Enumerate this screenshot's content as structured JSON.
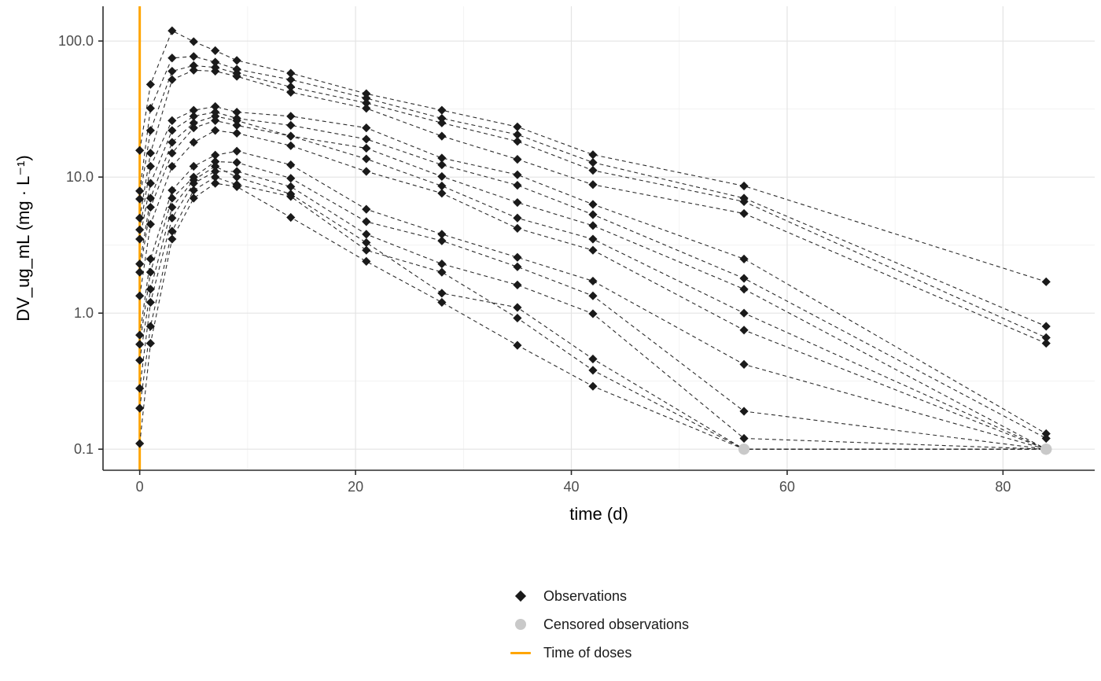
{
  "figure": {
    "background": "#FFFFFF",
    "axis_line_color": "#2B2B2B",
    "grid_major_color": "#E4E4E4",
    "grid_minor_color": "#F0F0F0",
    "tick_label_color": "#4D4D4D",
    "observation_color": "#1A1A1A",
    "censored_color": "#C9C9C9",
    "dose_line_color": "#FFA500"
  },
  "chart_data": {
    "type": "scatter",
    "subtype": "spaghetti-pk-log",
    "title": "",
    "xlabel": "time (d)",
    "ylabel": "DV_ug_mL (mg · L⁻¹)",
    "y_scale": "log10",
    "x_ticks": [
      0,
      20,
      40,
      60,
      80
    ],
    "x_minor_ticks": [
      10,
      30,
      50,
      70
    ],
    "y_ticks": [
      0.1,
      1.0,
      10.0,
      100.0
    ],
    "y_tick_labels": [
      "0.1",
      "1.0",
      "10.0",
      "100.0"
    ],
    "y_minor_ticks": [
      0.3162,
      3.1623,
      31.6228
    ],
    "x_range": [
      -3.4,
      88.5
    ],
    "y_range": [
      0.07,
      180
    ],
    "grid": true,
    "dose_time": 0,
    "censoring_limit": 0.1,
    "line_style": "dashed",
    "time_points": [
      0,
      1,
      3,
      5,
      7,
      9,
      14,
      21,
      28,
      35,
      42,
      56,
      84
    ],
    "subjects": [
      {
        "id": "1",
        "values": [
          15.7,
          48,
          119,
          99,
          85,
          72,
          58,
          41,
          31,
          23.4,
          14.6,
          8.6,
          1.7
        ],
        "censored_times": []
      },
      {
        "id": "2",
        "values": [
          7.9,
          32,
          75,
          77,
          70,
          62,
          52,
          38,
          27,
          20.5,
          12.8,
          7.0,
          0.8
        ],
        "censored_times": []
      },
      {
        "id": "3",
        "values": [
          6.9,
          22,
          60,
          66,
          64,
          58,
          46,
          35,
          25,
          18.3,
          11.2,
          6.6,
          0.66
        ],
        "censored_times": []
      },
      {
        "id": "4",
        "values": [
          5.0,
          15,
          52,
          61,
          60,
          55,
          42,
          32,
          20,
          13.5,
          8.8,
          5.4,
          0.6
        ],
        "censored_times": []
      },
      {
        "id": "5",
        "values": [
          4.1,
          12,
          26,
          31,
          33,
          30,
          28,
          23,
          13.8,
          10.4,
          6.3,
          2.5,
          0.13
        ],
        "censored_times": []
      },
      {
        "id": "6",
        "values": [
          3.5,
          9,
          22,
          28,
          30,
          27,
          24,
          19,
          12.3,
          8.7,
          5.3,
          1.8,
          0.12
        ],
        "censored_times": []
      },
      {
        "id": "7",
        "values": [
          2.3,
          7,
          18,
          25,
          28,
          26,
          20,
          16.3,
          10.1,
          6.5,
          4.4,
          1.5,
          0.1
        ],
        "censored_times": [
          84
        ]
      },
      {
        "id": "8",
        "values": [
          2.0,
          6,
          15,
          23,
          26,
          24,
          20,
          13.6,
          8.6,
          5.0,
          3.5,
          1.0,
          0.1
        ],
        "censored_times": [
          84
        ]
      },
      {
        "id": "9",
        "values": [
          1.34,
          4.5,
          12,
          18,
          22,
          21,
          17,
          11,
          7.6,
          4.2,
          2.9,
          0.75,
          0.1
        ],
        "censored_times": [
          84
        ]
      },
      {
        "id": "10",
        "values": [
          0.69,
          2.5,
          8,
          12,
          14.5,
          15.5,
          12.3,
          5.8,
          3.8,
          2.57,
          1.72,
          0.42,
          0.1
        ],
        "censored_times": [
          84
        ]
      },
      {
        "id": "11",
        "values": [
          0.59,
          2.0,
          7,
          10,
          13,
          12.8,
          9.8,
          4.7,
          3.4,
          2.19,
          1.34,
          0.19,
          0.1
        ],
        "censored_times": [
          84
        ]
      },
      {
        "id": "12",
        "values": [
          0.28,
          1.2,
          5,
          9,
          11,
          11,
          8.5,
          3.8,
          2.3,
          1.61,
          0.99,
          0.12,
          0.1
        ],
        "censored_times": [
          84
        ]
      },
      {
        "id": "13",
        "values": [
          0.45,
          1.5,
          6,
          9.5,
          12,
          10,
          7.5,
          3.3,
          1.4,
          1.1,
          0.46,
          0.1,
          0.1
        ],
        "censored_times": [
          56,
          84
        ]
      },
      {
        "id": "14",
        "values": [
          0.2,
          0.8,
          4,
          8,
          10,
          8.8,
          7.2,
          2.9,
          2.0,
          0.92,
          0.38,
          0.1,
          0.1
        ],
        "censored_times": [
          56,
          84
        ]
      },
      {
        "id": "15",
        "values": [
          0.11,
          0.6,
          3.5,
          7,
          9,
          8.5,
          5.05,
          2.4,
          1.2,
          0.58,
          0.29,
          0.1,
          0.1
        ],
        "censored_times": [
          56,
          84
        ]
      }
    ],
    "legend": {
      "position": "bottom",
      "items": [
        {
          "label": "Observations",
          "marker": "diamond",
          "color": "#1A1A1A"
        },
        {
          "label": "Censored observations",
          "marker": "circle",
          "color": "#C9C9C9"
        },
        {
          "label": "Time of doses",
          "marker": "line",
          "color": "#FFA500"
        }
      ]
    }
  }
}
